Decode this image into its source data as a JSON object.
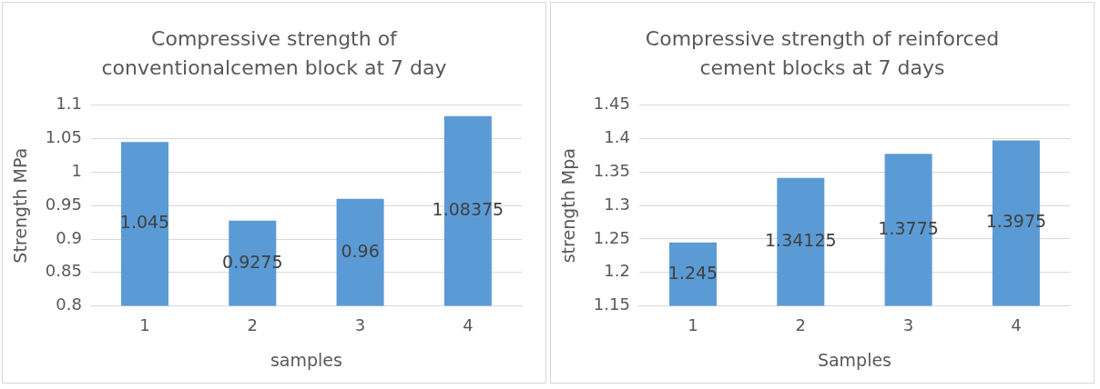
{
  "chart_data": [
    {
      "type": "bar",
      "title": "Compressive strength of conventionalcemen block at 7 day",
      "xlabel": "samples",
      "ylabel": "Strength MPa",
      "categories": [
        "1",
        "2",
        "3",
        "4"
      ],
      "values": [
        1.045,
        0.9275,
        0.96,
        1.08375
      ],
      "color": "#5b9bd5",
      "ylim": [
        0.8,
        1.1
      ],
      "yticks": [
        0.8,
        0.85,
        0.9,
        0.95,
        1,
        1.05,
        1.1
      ],
      "grid": "y",
      "data_labels": true,
      "legend": false
    },
    {
      "type": "bar",
      "title": "Compressive strength of reinforced cement blocks at 7 days",
      "xlabel": "Samples",
      "ylabel": "strength Mpa",
      "categories": [
        "1",
        "2",
        "3",
        "4"
      ],
      "values": [
        1.245,
        1.34125,
        1.3775,
        1.3975
      ],
      "color": "#5b9bd5",
      "ylim": [
        1.15,
        1.45
      ],
      "yticks": [
        1.15,
        1.2,
        1.25,
        1.3,
        1.35,
        1.4,
        1.45
      ],
      "grid": "y",
      "data_labels": true,
      "legend": false
    }
  ]
}
